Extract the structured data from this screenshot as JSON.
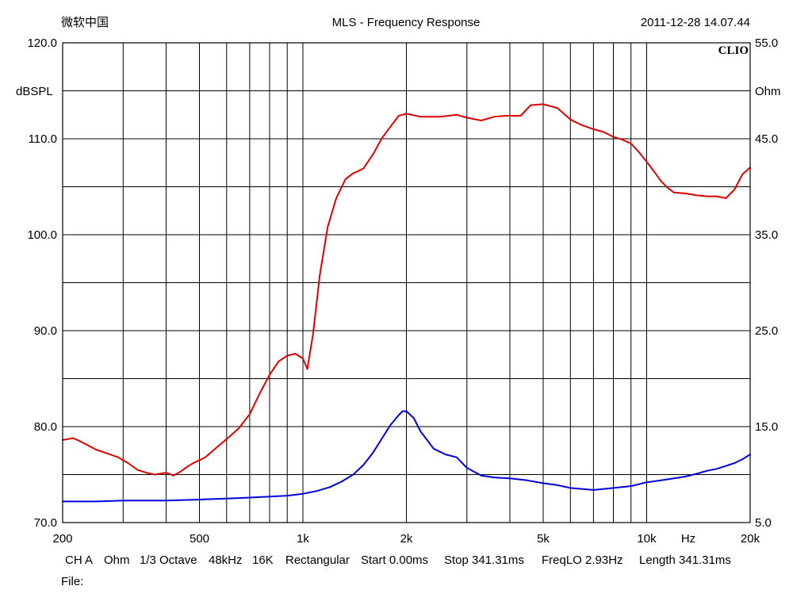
{
  "header": {
    "left": "微软中国",
    "center": "MLS - Frequency Response",
    "right": "2011-12-28 14.07.44",
    "brand": "CLIO"
  },
  "footer": {
    "params": [
      "CH A",
      "Ohm",
      "1/3 Octave",
      "48kHz",
      "16K",
      "Rectangular",
      "Start 0.00ms",
      "Stop 341.31ms",
      "FreqLO 2.93Hz",
      "Length 341.31ms"
    ],
    "file_label": "File:"
  },
  "chart_data": {
    "type": "line",
    "title": "MLS - Frequency Response",
    "xlabel": "Hz",
    "ylabel": "dBSPL",
    "y2label": "Ohm",
    "xscale": "log",
    "xlim": [
      200,
      20000
    ],
    "ylim": [
      70,
      120
    ],
    "y2lim": [
      5,
      55
    ],
    "grid": true,
    "x_tick_labels": [
      {
        "value": 200,
        "label": "200"
      },
      {
        "value": 500,
        "label": "500"
      },
      {
        "value": 1000,
        "label": "1k"
      },
      {
        "value": 2000,
        "label": "2k"
      },
      {
        "value": 5000,
        "label": "5k"
      },
      {
        "value": 10000,
        "label": "10k"
      },
      {
        "value": 20000,
        "label": "20k"
      }
    ],
    "x_grid": [
      200,
      300,
      400,
      500,
      600,
      700,
      800,
      900,
      1000,
      2000,
      3000,
      4000,
      5000,
      6000,
      7000,
      8000,
      9000,
      10000,
      20000
    ],
    "y_tick_labels": [
      {
        "value": 120,
        "label": "120.0"
      },
      {
        "value": 110,
        "label": "110.0"
      },
      {
        "value": 100,
        "label": "100.0"
      },
      {
        "value": 90,
        "label": "90.0"
      },
      {
        "value": 80,
        "label": "80.0"
      },
      {
        "value": 70,
        "label": "70.0"
      }
    ],
    "y2_tick_labels": [
      {
        "value": 55,
        "label": "55.0"
      },
      {
        "value": 45,
        "label": "45.0"
      },
      {
        "value": 35,
        "label": "35.0"
      },
      {
        "value": 25,
        "label": "25.0"
      },
      {
        "value": 15,
        "label": "15.0"
      },
      {
        "value": 5,
        "label": "5.0"
      }
    ],
    "y_grid_step": 5,
    "series": [
      {
        "axis": "left",
        "color": "#e00000",
        "x": [
          200,
          215,
          230,
          250,
          270,
          290,
          310,
          330,
          350,
          370,
          400,
          420,
          440,
          460,
          480,
          520,
          560,
          600,
          650,
          700,
          750,
          800,
          850,
          900,
          950,
          1000,
          1030,
          1070,
          1120,
          1180,
          1250,
          1330,
          1400,
          1500,
          1600,
          1700,
          1800,
          1900,
          2000,
          2200,
          2500,
          2800,
          3000,
          3300,
          3600,
          3900,
          4300,
          4600,
          5000,
          5500,
          6000,
          6500,
          7000,
          7500,
          8000,
          8500,
          9000,
          9500,
          10000,
          10500,
          11000,
          11500,
          12000,
          13000,
          14000,
          15000,
          16000,
          17000,
          18000,
          19000,
          20000
        ],
        "values": [
          78.6,
          78.8,
          78.3,
          77.6,
          77.2,
          76.8,
          76.2,
          75.5,
          75.2,
          75.0,
          75.2,
          74.9,
          75.3,
          75.8,
          76.2,
          76.8,
          77.8,
          78.7,
          79.8,
          81.3,
          83.5,
          85.4,
          86.8,
          87.4,
          87.6,
          87.1,
          86.0,
          89.6,
          95.8,
          100.8,
          103.8,
          105.8,
          106.4,
          106.9,
          108.4,
          110.1,
          111.3,
          112.4,
          112.6,
          112.3,
          112.3,
          112.5,
          112.2,
          111.9,
          112.3,
          112.4,
          112.4,
          113.5,
          113.6,
          113.2,
          112.0,
          111.4,
          111.0,
          110.7,
          110.2,
          109.9,
          109.5,
          108.6,
          107.6,
          106.6,
          105.6,
          104.9,
          104.4,
          104.3,
          104.1,
          104.0,
          104.0,
          103.8,
          104.7,
          106.3,
          107.0
        ]
      },
      {
        "axis": "right",
        "color": "#0000dc",
        "x": [
          200,
          250,
          300,
          400,
          500,
          600,
          700,
          800,
          900,
          1000,
          1100,
          1200,
          1300,
          1400,
          1500,
          1600,
          1700,
          1800,
          1900,
          1950,
          2000,
          2100,
          2200,
          2400,
          2600,
          2800,
          3000,
          3300,
          3600,
          4000,
          4500,
          5000,
          5500,
          6000,
          6500,
          7000,
          7500,
          8000,
          9000,
          10000,
          11000,
          12000,
          13000,
          14000,
          15000,
          16000,
          17000,
          18000,
          19000,
          20000
        ],
        "values": [
          7.2,
          7.2,
          7.3,
          7.3,
          7.4,
          7.5,
          7.6,
          7.7,
          7.8,
          8.0,
          8.3,
          8.7,
          9.3,
          10.0,
          11.0,
          12.3,
          13.8,
          15.2,
          16.2,
          16.6,
          16.6,
          15.9,
          14.5,
          12.7,
          12.1,
          11.8,
          10.7,
          9.9,
          9.7,
          9.6,
          9.4,
          9.1,
          8.9,
          8.6,
          8.5,
          8.4,
          8.5,
          8.6,
          8.8,
          9.2,
          9.4,
          9.6,
          9.8,
          10.1,
          10.4,
          10.6,
          10.9,
          11.2,
          11.6,
          12.1
        ]
      }
    ]
  }
}
